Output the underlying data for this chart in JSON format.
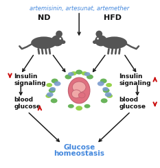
{
  "title_text": "artemisinin, artesunat, artemether",
  "title_color": "#4488dd",
  "nd_label": "ND",
  "hfd_label": "HFD",
  "left_insulin": "Insulin\nsignaling",
  "right_insulin": "Insulin\nsignaling",
  "left_glucose": "blood\nglucose",
  "right_glucose": "blood\nglucose",
  "bottom_label1": "Glucose",
  "bottom_label2": "homeostasis",
  "bottom_color": "#4488dd",
  "arrow_color": "#1a1a1a",
  "red_color": "#cc1111",
  "text_color": "#111111",
  "bg_color": "#ffffff",
  "mouse_color": "#555555",
  "intestine_color": "#e07080",
  "intestine_light": "#f0a8a8",
  "bacteria_green1": "#55aa44",
  "bacteria_green2": "#88cc33",
  "bacteria_blue": "#7799cc"
}
